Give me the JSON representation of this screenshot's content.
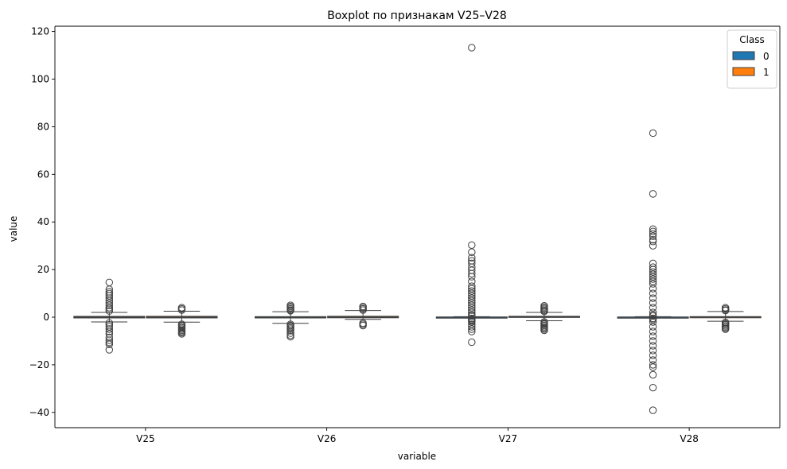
{
  "chart_data": {
    "type": "boxplot",
    "title": "Boxplot по признакам V25–V28",
    "xlabel": "variable",
    "ylabel": "value",
    "categories": [
      "V25",
      "V26",
      "V27",
      "V28"
    ],
    "ylim": [
      -46.4,
      122.2
    ],
    "yticks": [
      -40,
      -20,
      0,
      20,
      40,
      60,
      80,
      100,
      120
    ],
    "grid": false,
    "legend": {
      "title": "Class",
      "position": "top-right"
    },
    "series": [
      {
        "name": "0",
        "color": "#1f77b4",
        "boxes": [
          {
            "category": "V25",
            "whislo": -2.0,
            "q1": -0.32,
            "med": 0.02,
            "q3": 0.35,
            "whishi": 2.0,
            "fliers": [
              14.6,
              11.7,
              10.7,
              9.9,
              9.0,
              8.0,
              7.0,
              6.0,
              5.0,
              4.0,
              3.3,
              2.6,
              -2.4,
              -3.2,
              -4.0,
              -5.0,
              -6.0,
              -7.0,
              -8.5,
              -9.7,
              -10.6,
              -11.4,
              -13.7
            ]
          },
          {
            "category": "V26",
            "whislo": -2.6,
            "q1": -0.33,
            "med": -0.05,
            "q3": 0.24,
            "whishi": 2.3,
            "fliers": [
              5.0,
              4.5,
              4.0,
              3.5,
              3.0,
              2.7,
              -3.0,
              -3.5,
              -4.0,
              -4.5,
              -5.0,
              -5.7,
              -6.7,
              -7.6,
              -8.2
            ]
          },
          {
            "category": "V27",
            "whislo": -0.19,
            "q1": -0.07,
            "med": 0.0,
            "q3": 0.09,
            "whishi": 0.22,
            "fliers": [
              113.2,
              30.3,
              27.3,
              25.0,
              23.7,
              22.6,
              21.0,
              19.7,
              18.3,
              17.0,
              15.0,
              13.0,
              12.0,
              11.0,
              10.0,
              9.0,
              8.0,
              7.0,
              6.0,
              5.0,
              4.0,
              3.0,
              2.0,
              1.0,
              0.5,
              -0.5,
              -1.0,
              -1.5,
              -2.0,
              -3.0,
              -4.0,
              -5.0,
              -6.0,
              -10.5
            ]
          },
          {
            "category": "V28",
            "whislo": -0.16,
            "q1": -0.05,
            "med": 0.01,
            "q3": 0.08,
            "whishi": 0.2,
            "fliers": [
              77.3,
              51.8,
              37.0,
              36.0,
              35.0,
              34.0,
              32.5,
              31.8,
              30.0,
              22.6,
              21.0,
              20.0,
              19.0,
              18.0,
              17.0,
              16.0,
              15.0,
              14.0,
              12.0,
              10.0,
              8.0,
              6.0,
              4.0,
              2.0,
              1.0,
              0.5,
              -0.5,
              -1.0,
              -2.0,
              -4.0,
              -6.0,
              -8.0,
              -10.0,
              -12.0,
              -14.0,
              -16.0,
              -18.0,
              -20.0,
              -21.0,
              -24.2,
              -29.6,
              -39.1
            ]
          }
        ]
      },
      {
        "name": "1",
        "color": "#ff7f0e",
        "boxes": [
          {
            "category": "V25",
            "whislo": -2.1,
            "q1": -0.31,
            "med": 0.02,
            "q3": 0.38,
            "whishi": 2.5,
            "fliers": [
              4.0,
              3.5,
              3.0,
              -3.0,
              -3.5,
              -4.0,
              -4.5,
              -5.0,
              -5.5,
              -6.0,
              -6.5,
              -7.0
            ]
          },
          {
            "category": "V26",
            "whislo": -0.9,
            "q1": -0.25,
            "med": 0.05,
            "q3": 0.39,
            "whishi": 2.8,
            "fliers": [
              4.5,
              4.0,
              3.5,
              3.0,
              -2.5,
              -3.0,
              -3.5
            ]
          },
          {
            "category": "V27",
            "whislo": -1.5,
            "q1": -0.03,
            "med": 0.15,
            "q3": 0.39,
            "whishi": 2.0,
            "fliers": [
              4.8,
              4.3,
              3.8,
              3.3,
              2.8,
              2.4,
              -2.0,
              -2.5,
              -3.0,
              -3.5,
              -4.0,
              -4.5,
              -5.0,
              -5.5
            ]
          },
          {
            "category": "V28",
            "whislo": -1.7,
            "q1": -0.02,
            "med": 0.1,
            "q3": 0.25,
            "whishi": 2.4,
            "fliers": [
              4.0,
              3.5,
              3.0,
              2.8,
              -2.2,
              -2.7,
              -3.2,
              -3.7,
              -4.2,
              -4.7,
              -5.0
            ]
          }
        ]
      }
    ]
  }
}
